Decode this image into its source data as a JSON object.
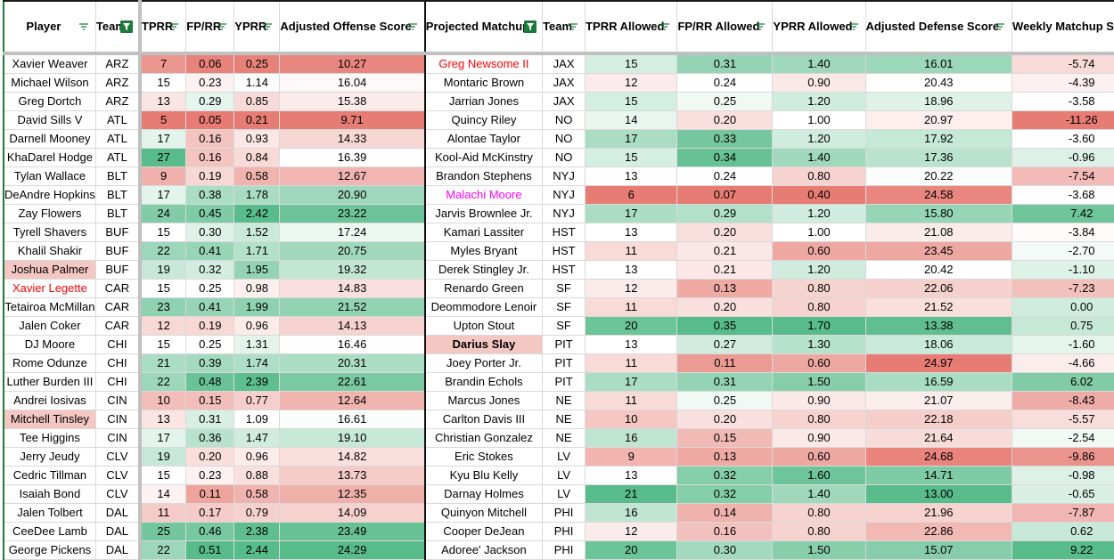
{
  "headers": {
    "left": [
      "Player",
      "Team",
      "TPRR",
      "FP/RR",
      "YPRR",
      "Adjusted Offense Score"
    ],
    "right": [
      "Projected Matchup",
      "Team",
      "TPRR Allowed",
      "FP/RR Allowed",
      "YPRR Allowed",
      "Adjusted Defense Score",
      "Weekly Matchup Score"
    ],
    "active_filters": [
      "Team",
      "Projected Matchup"
    ]
  },
  "colors": {
    "low": "#e67c73",
    "mid": "#ffffff",
    "high": "#57bb8a",
    "highlight_bg": "#f4c7c3",
    "red_text": "#ff0000",
    "magenta_text": "#ff00ff",
    "filter_green": "#1e7a3c"
  },
  "rows": [
    {
      "player": "Xavier Weaver",
      "team": "ARZ",
      "tprr": "7",
      "fprr": "0.06",
      "yprr": "0.25",
      "aos": "10.27",
      "matchup": "Greg Newsome II",
      "mteam": "JAX",
      "tprra": "15",
      "fprra": "0.31",
      "yprra": "1.40",
      "ads": "16.01",
      "wms": "-5.74",
      "matchup_style": "red"
    },
    {
      "player": "Michael Wilson",
      "team": "ARZ",
      "tprr": "15",
      "fprr": "0.23",
      "yprr": "1.14",
      "aos": "16.04",
      "matchup": "Montaric Brown",
      "mteam": "JAX",
      "tprra": "12",
      "fprra": "0.24",
      "yprra": "0.90",
      "ads": "20.43",
      "wms": "-4.39"
    },
    {
      "player": "Greg Dortch",
      "team": "ARZ",
      "tprr": "13",
      "fprr": "0.29",
      "yprr": "0.85",
      "aos": "15.38",
      "matchup": "Jarrian Jones",
      "mteam": "JAX",
      "tprra": "15",
      "fprra": "0.25",
      "yprra": "1.20",
      "ads": "18.96",
      "wms": "-3.58"
    },
    {
      "player": "David Sills V",
      "team": "ATL",
      "tprr": "5",
      "fprr": "0.05",
      "yprr": "0.21",
      "aos": "9.71",
      "matchup": "Quincy Riley",
      "mteam": "NO",
      "tprra": "14",
      "fprra": "0.20",
      "yprra": "1.00",
      "ads": "20.97",
      "wms": "-11.26"
    },
    {
      "player": "Darnell Mooney",
      "team": "ATL",
      "tprr": "17",
      "fprr": "0.16",
      "yprr": "0.93",
      "aos": "14.33",
      "matchup": "Alontae Taylor",
      "mteam": "NO",
      "tprra": "17",
      "fprra": "0.33",
      "yprra": "1.20",
      "ads": "17.92",
      "wms": "-3.60"
    },
    {
      "player": "KhaDarel Hodge",
      "team": "ATL",
      "tprr": "27",
      "fprr": "0.16",
      "yprr": "0.84",
      "aos": "16.39",
      "matchup": "Kool-Aid McKinstry",
      "mteam": "NO",
      "tprra": "15",
      "fprra": "0.34",
      "yprra": "1.40",
      "ads": "17.36",
      "wms": "-0.96"
    },
    {
      "player": "Tylan Wallace",
      "team": "BLT",
      "tprr": "9",
      "fprr": "0.19",
      "yprr": "0.58",
      "aos": "12.67",
      "matchup": "Brandon Stephens",
      "mteam": "NYJ",
      "tprra": "13",
      "fprra": "0.24",
      "yprra": "0.80",
      "ads": "20.22",
      "wms": "-7.54"
    },
    {
      "player": "DeAndre Hopkins",
      "team": "BLT",
      "tprr": "17",
      "fprr": "0.38",
      "yprr": "1.78",
      "aos": "20.90",
      "matchup": "Malachi Moore",
      "mteam": "NYJ",
      "tprra": "6",
      "fprra": "0.07",
      "yprra": "0.40",
      "ads": "24.58",
      "wms": "-3.68",
      "matchup_style": "magenta"
    },
    {
      "player": "Zay Flowers",
      "team": "BLT",
      "tprr": "24",
      "fprr": "0.45",
      "yprr": "2.42",
      "aos": "23.22",
      "matchup": "Jarvis Brownlee Jr.",
      "mteam": "NYJ",
      "tprra": "17",
      "fprra": "0.29",
      "yprra": "1.20",
      "ads": "15.80",
      "wms": "7.42"
    },
    {
      "player": "Tyrell Shavers",
      "team": "BUF",
      "tprr": "15",
      "fprr": "0.30",
      "yprr": "1.52",
      "aos": "17.24",
      "matchup": "Kamari Lassiter",
      "mteam": "HST",
      "tprra": "13",
      "fprra": "0.20",
      "yprra": "1.00",
      "ads": "21.08",
      "wms": "-3.84"
    },
    {
      "player": "Khalil Shakir",
      "team": "BUF",
      "tprr": "22",
      "fprr": "0.41",
      "yprr": "1.71",
      "aos": "20.75",
      "matchup": "Myles Bryant",
      "mteam": "HST",
      "tprra": "11",
      "fprra": "0.21",
      "yprra": "0.60",
      "ads": "23.45",
      "wms": "-2.70"
    },
    {
      "player": "Joshua Palmer",
      "team": "BUF",
      "tprr": "19",
      "fprr": "0.32",
      "yprr": "1.95",
      "aos": "19.32",
      "matchup": "Derek Stingley Jr.",
      "mteam": "HST",
      "tprra": "13",
      "fprra": "0.21",
      "yprra": "1.20",
      "ads": "20.42",
      "wms": "-1.10",
      "player_style": "highlight"
    },
    {
      "player": "Xavier Legette",
      "team": "CAR",
      "tprr": "15",
      "fprr": "0.25",
      "yprr": "0.98",
      "aos": "14.83",
      "matchup": "Renardo Green",
      "mteam": "SF",
      "tprra": "12",
      "fprra": "0.13",
      "yprra": "0.80",
      "ads": "22.06",
      "wms": "-7.23",
      "player_style": "red"
    },
    {
      "player": "Tetairoa McMillan",
      "team": "CAR",
      "tprr": "23",
      "fprr": "0.41",
      "yprr": "1.99",
      "aos": "21.52",
      "matchup": "Deommodore Lenoir",
      "mteam": "SF",
      "tprra": "11",
      "fprra": "0.20",
      "yprra": "0.80",
      "ads": "21.52",
      "wms": "0.00"
    },
    {
      "player": "Jalen Coker",
      "team": "CAR",
      "tprr": "12",
      "fprr": "0.19",
      "yprr": "0.96",
      "aos": "14.13",
      "matchup": "Upton Stout",
      "mteam": "SF",
      "tprra": "20",
      "fprra": "0.35",
      "yprra": "1.70",
      "ads": "13.38",
      "wms": "0.75"
    },
    {
      "player": "DJ Moore",
      "team": "CHI",
      "tprr": "15",
      "fprr": "0.25",
      "yprr": "1.31",
      "aos": "16.46",
      "matchup": "Darius Slay",
      "mteam": "PIT",
      "tprra": "13",
      "fprra": "0.27",
      "yprra": "1.30",
      "ads": "18.06",
      "wms": "-1.60",
      "matchup_style": "highlight-bold"
    },
    {
      "player": "Rome Odunze",
      "team": "CHI",
      "tprr": "21",
      "fprr": "0.39",
      "yprr": "1.74",
      "aos": "20.31",
      "matchup": "Joey Porter Jr.",
      "mteam": "PIT",
      "tprra": "11",
      "fprra": "0.11",
      "yprra": "0.60",
      "ads": "24.97",
      "wms": "-4.66"
    },
    {
      "player": "Luther Burden III",
      "team": "CHI",
      "tprr": "22",
      "fprr": "0.48",
      "yprr": "2.39",
      "aos": "22.61",
      "matchup": "Brandin Echols",
      "mteam": "PIT",
      "tprra": "17",
      "fprra": "0.31",
      "yprra": "1.50",
      "ads": "16.59",
      "wms": "6.02"
    },
    {
      "player": "Andrei Iosivas",
      "team": "CIN",
      "tprr": "10",
      "fprr": "0.15",
      "yprr": "0.77",
      "aos": "12.64",
      "matchup": "Marcus Jones",
      "mteam": "NE",
      "tprra": "11",
      "fprra": "0.25",
      "yprra": "0.90",
      "ads": "21.07",
      "wms": "-8.43"
    },
    {
      "player": "Mitchell Tinsley",
      "team": "CIN",
      "tprr": "13",
      "fprr": "0.31",
      "yprr": "1.09",
      "aos": "16.61",
      "matchup": "Carlton Davis III",
      "mteam": "NE",
      "tprra": "10",
      "fprra": "0.20",
      "yprra": "0.80",
      "ads": "22.18",
      "wms": "-5.57",
      "player_style": "highlight"
    },
    {
      "player": "Tee Higgins",
      "team": "CIN",
      "tprr": "17",
      "fprr": "0.36",
      "yprr": "1.47",
      "aos": "19.10",
      "matchup": "Christian Gonzalez",
      "mteam": "NE",
      "tprra": "16",
      "fprra": "0.15",
      "yprra": "0.90",
      "ads": "21.64",
      "wms": "-2.54"
    },
    {
      "player": "Jerry Jeudy",
      "team": "CLV",
      "tprr": "19",
      "fprr": "0.20",
      "yprr": "0.96",
      "aos": "14.82",
      "matchup": "Eric Stokes",
      "mteam": "LV",
      "tprra": "9",
      "fprra": "0.13",
      "yprra": "0.60",
      "ads": "24.68",
      "wms": "-9.86"
    },
    {
      "player": "Cedric Tillman",
      "team": "CLV",
      "tprr": "15",
      "fprr": "0.23",
      "yprr": "0.88",
      "aos": "13.73",
      "matchup": "Kyu Blu Kelly",
      "mteam": "LV",
      "tprra": "13",
      "fprra": "0.32",
      "yprra": "1.60",
      "ads": "14.71",
      "wms": "-0.98"
    },
    {
      "player": "Isaiah Bond",
      "team": "CLV",
      "tprr": "14",
      "fprr": "0.11",
      "yprr": "0.58",
      "aos": "12.35",
      "matchup": "Darnay Holmes",
      "mteam": "LV",
      "tprra": "21",
      "fprra": "0.32",
      "yprra": "1.40",
      "ads": "13.00",
      "wms": "-0.65"
    },
    {
      "player": "Jalen Tolbert",
      "team": "DAL",
      "tprr": "11",
      "fprr": "0.17",
      "yprr": "0.79",
      "aos": "14.09",
      "matchup": "Quinyon Mitchell",
      "mteam": "PHI",
      "tprra": "16",
      "fprra": "0.14",
      "yprra": "0.80",
      "ads": "21.96",
      "wms": "-7.87"
    },
    {
      "player": "CeeDee Lamb",
      "team": "DAL",
      "tprr": "25",
      "fprr": "0.46",
      "yprr": "2.38",
      "aos": "23.49",
      "matchup": "Cooper DeJean",
      "mteam": "PHI",
      "tprra": "12",
      "fprra": "0.16",
      "yprra": "0.80",
      "ads": "22.86",
      "wms": "0.62"
    },
    {
      "player": "George Pickens",
      "team": "DAL",
      "tprr": "22",
      "fprr": "0.51",
      "yprr": "2.44",
      "aos": "24.29",
      "matchup": "Adoree' Jackson",
      "mteam": "PHI",
      "tprra": "20",
      "fprra": "0.30",
      "yprra": "1.50",
      "ads": "15.07",
      "wms": "9.22"
    }
  ]
}
